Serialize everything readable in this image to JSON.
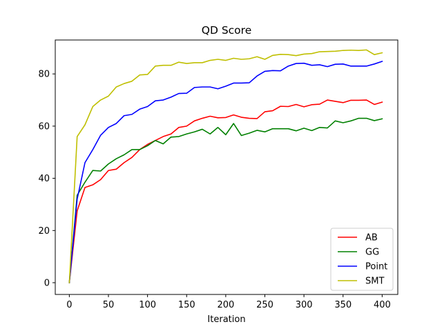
{
  "chart_data": {
    "type": "line",
    "title": "QD Score",
    "xlabel": "Iteration",
    "ylabel": "",
    "xlim": [
      -18,
      420
    ],
    "ylim": [
      -4.5,
      93
    ],
    "xticks": [
      0,
      50,
      100,
      150,
      200,
      250,
      300,
      350,
      400
    ],
    "yticks": [
      0,
      20,
      40,
      60,
      80
    ],
    "grid": false,
    "legend_position": "lower-right",
    "x": [
      0,
      10,
      20,
      30,
      40,
      50,
      60,
      70,
      80,
      90,
      100,
      110,
      120,
      130,
      140,
      150,
      160,
      170,
      180,
      190,
      200,
      210,
      220,
      230,
      240,
      250,
      260,
      270,
      280,
      290,
      300,
      310,
      320,
      330,
      340,
      350,
      360,
      370,
      380,
      390,
      400
    ],
    "series": [
      {
        "name": "AB",
        "color": "#ff0000",
        "values": [
          0,
          27.5,
          36.5,
          37.5,
          39.5,
          43,
          43.5,
          46,
          48,
          51,
          53,
          54.5,
          56,
          57,
          59.5,
          60,
          62,
          63,
          63.8,
          63.2,
          63.3,
          64.3,
          63.4,
          63,
          62.9,
          65.5,
          65.9,
          67.6,
          67.5,
          68.3,
          67.4,
          68.2,
          68.4,
          70,
          69.5,
          69,
          69.9,
          69.9,
          70,
          68.3,
          69.2
        ]
      },
      {
        "name": "GG",
        "color": "#008000",
        "values": [
          0,
          33.5,
          38.5,
          43,
          42.8,
          45.5,
          47.5,
          49,
          51,
          51,
          52.5,
          54.5,
          53.2,
          55.8,
          56,
          57,
          57.8,
          58.8,
          57,
          59.5,
          56.7,
          61,
          56.4,
          57.3,
          58.4,
          57.8,
          59,
          59,
          59,
          58.2,
          59.2,
          58.3,
          59.5,
          59.3,
          62,
          61.3,
          62,
          63,
          63,
          62.1,
          62.8
        ]
      },
      {
        "name": "Point",
        "color": "#0000ff",
        "values": [
          0,
          32,
          46,
          51,
          56.5,
          59.5,
          61,
          64,
          64.5,
          66.5,
          67.5,
          69.7,
          70,
          71.1,
          72.5,
          72.6,
          74.8,
          75,
          75,
          74.3,
          75.3,
          76.5,
          76.5,
          76.6,
          79.2,
          81,
          81.3,
          81.2,
          83,
          84,
          84.1,
          83.3,
          83.5,
          82.8,
          83.7,
          83.8,
          83,
          83,
          83,
          83.8,
          84.8
        ]
      },
      {
        "name": "SMT",
        "color": "#bfbf00",
        "values": [
          0,
          56,
          60.5,
          67.5,
          70,
          71.5,
          75,
          76.3,
          77.2,
          79.6,
          79.8,
          83,
          83.3,
          83.3,
          84.5,
          84,
          84.3,
          84.3,
          85.2,
          85.6,
          85.2,
          86,
          85.6,
          85.8,
          86.6,
          85.6,
          87.1,
          87.5,
          87.4,
          87,
          87.6,
          87.8,
          88.5,
          88.6,
          88.7,
          89,
          89.1,
          89,
          89.2,
          87.4,
          88.1
        ]
      }
    ]
  }
}
